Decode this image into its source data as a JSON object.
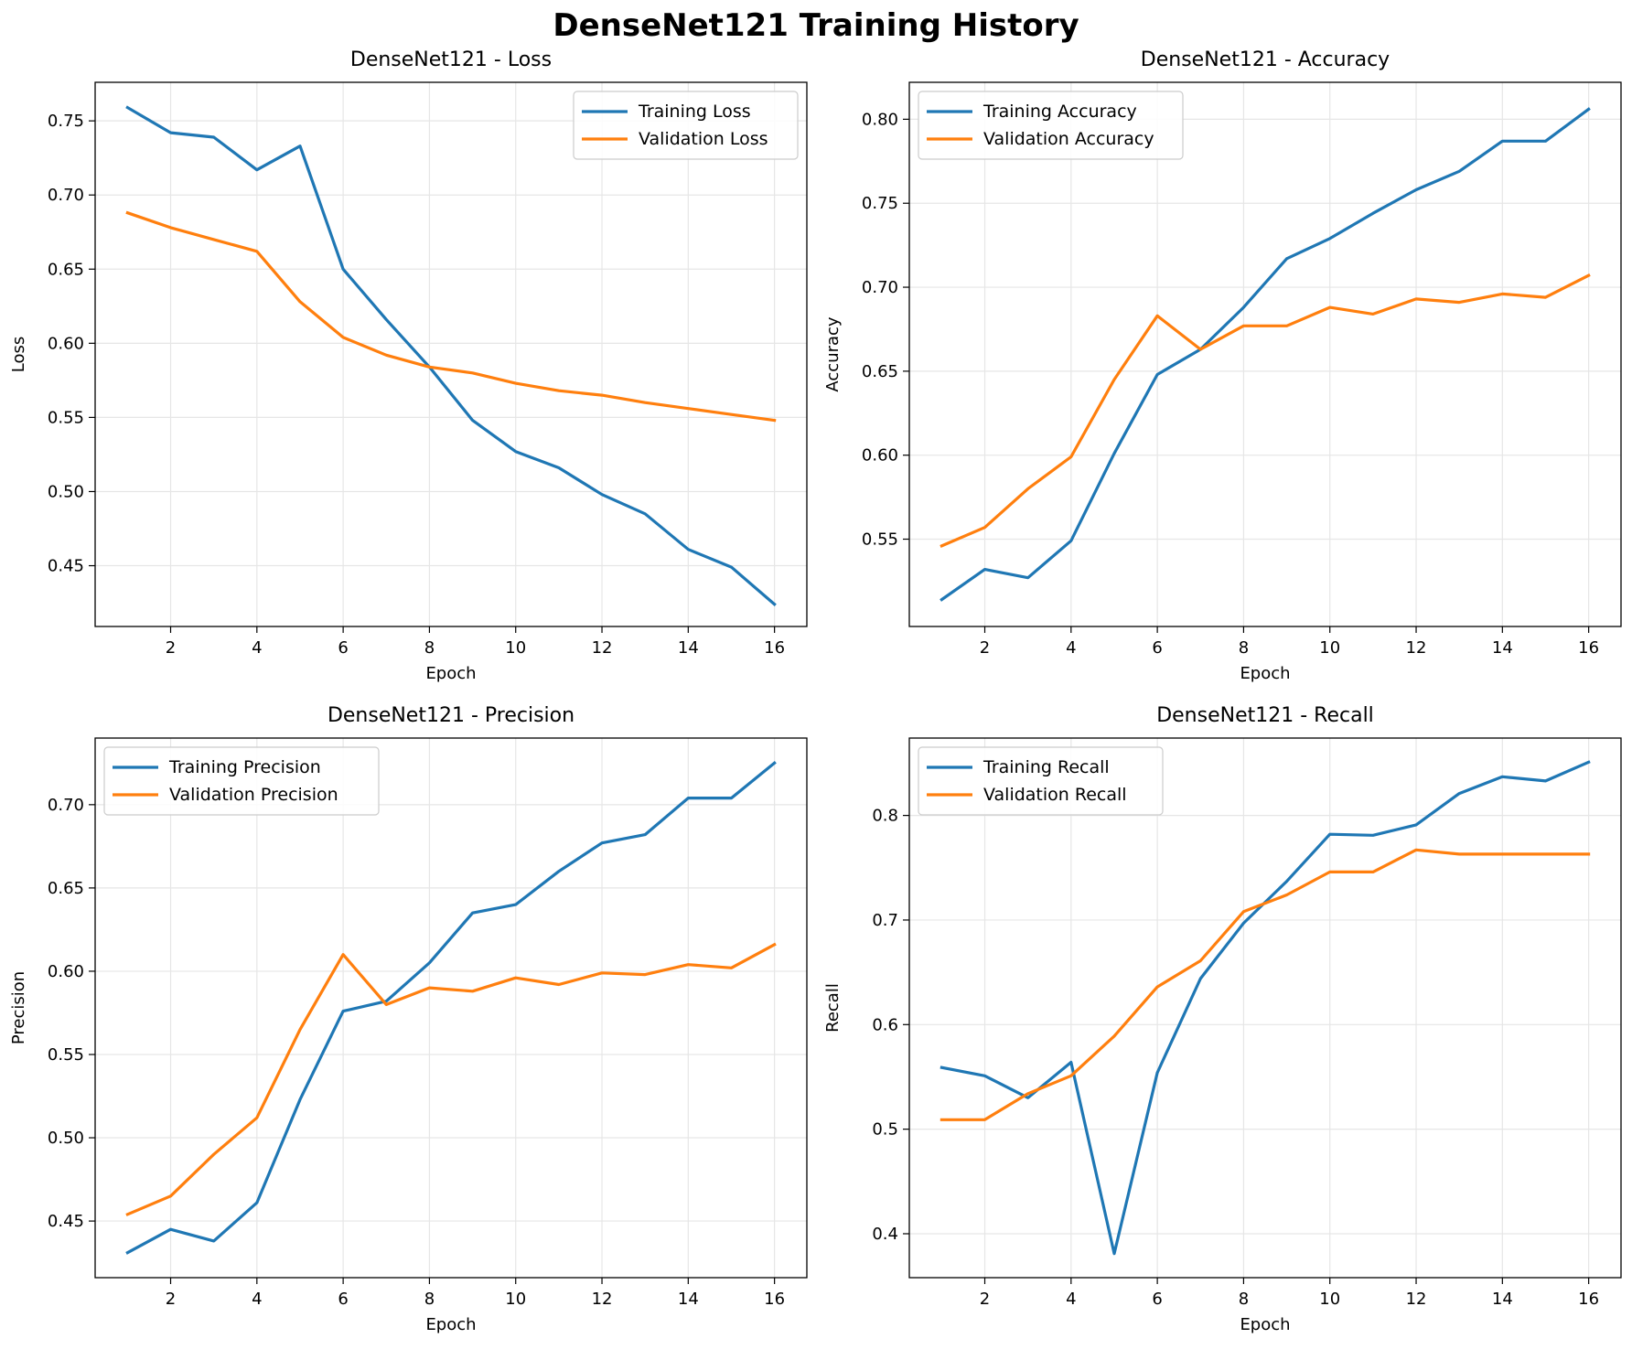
{
  "suptitle": "DenseNet121 Training History",
  "colors": {
    "training": "#1f77b4",
    "validation": "#ff7f0e",
    "grid": "#e6e6e6"
  },
  "chart_data": [
    {
      "type": "line",
      "title": "DenseNet121 - Loss",
      "xlabel": "Epoch",
      "ylabel": "Loss",
      "x": [
        1,
        2,
        3,
        4,
        5,
        6,
        7,
        8,
        9,
        10,
        11,
        12,
        13,
        14,
        15,
        16
      ],
      "xticks": [
        2,
        4,
        6,
        8,
        10,
        12,
        14,
        16
      ],
      "yticks": [
        0.45,
        0.5,
        0.55,
        0.6,
        0.65,
        0.7,
        0.75
      ],
      "ytick_labels": [
        "0.45",
        "0.50",
        "0.55",
        "0.60",
        "0.65",
        "0.70",
        "0.75"
      ],
      "xlim": [
        0.25,
        16.75
      ],
      "ylim": [
        0.409,
        0.776
      ],
      "grid": true,
      "legend": "upper right",
      "series": [
        {
          "name": "Training Loss",
          "values": [
            0.759,
            0.742,
            0.739,
            0.717,
            0.733,
            0.65,
            0.616,
            0.584,
            0.548,
            0.527,
            0.516,
            0.498,
            0.485,
            0.461,
            0.449,
            0.424
          ]
        },
        {
          "name": "Validation Loss",
          "values": [
            0.688,
            0.678,
            0.67,
            0.662,
            0.628,
            0.604,
            0.592,
            0.584,
            0.58,
            0.573,
            0.568,
            0.565,
            0.56,
            0.556,
            0.552,
            0.548
          ]
        }
      ]
    },
    {
      "type": "line",
      "title": "DenseNet121 - Accuracy",
      "xlabel": "Epoch",
      "ylabel": "Accuracy",
      "x": [
        1,
        2,
        3,
        4,
        5,
        6,
        7,
        8,
        9,
        10,
        11,
        12,
        13,
        14,
        15,
        16
      ],
      "xticks": [
        2,
        4,
        6,
        8,
        10,
        12,
        14,
        16
      ],
      "yticks": [
        0.55,
        0.6,
        0.65,
        0.7,
        0.75,
        0.8
      ],
      "ytick_labels": [
        "0.55",
        "0.60",
        "0.65",
        "0.70",
        "0.75",
        "0.80"
      ],
      "xlim": [
        0.25,
        16.75
      ],
      "ylim": [
        0.498,
        0.822
      ],
      "grid": true,
      "legend": "upper left",
      "series": [
        {
          "name": "Training Accuracy",
          "values": [
            0.514,
            0.532,
            0.527,
            0.549,
            0.601,
            0.648,
            0.663,
            0.688,
            0.717,
            0.729,
            0.744,
            0.758,
            0.769,
            0.787,
            0.787,
            0.806
          ]
        },
        {
          "name": "Validation Accuracy",
          "values": [
            0.546,
            0.557,
            0.58,
            0.599,
            0.645,
            0.683,
            0.663,
            0.677,
            0.677,
            0.688,
            0.684,
            0.693,
            0.691,
            0.696,
            0.694,
            0.707
          ]
        }
      ]
    },
    {
      "type": "line",
      "title": "DenseNet121 - Precision",
      "xlabel": "Epoch",
      "ylabel": "Precision",
      "x": [
        1,
        2,
        3,
        4,
        5,
        6,
        7,
        8,
        9,
        10,
        11,
        12,
        13,
        14,
        15,
        16
      ],
      "xticks": [
        2,
        4,
        6,
        8,
        10,
        12,
        14,
        16
      ],
      "yticks": [
        0.45,
        0.5,
        0.55,
        0.6,
        0.65,
        0.7
      ],
      "ytick_labels": [
        "0.45",
        "0.50",
        "0.55",
        "0.60",
        "0.65",
        "0.70"
      ],
      "xlim": [
        0.25,
        16.75
      ],
      "ylim": [
        0.416,
        0.74
      ],
      "grid": true,
      "legend": "upper left",
      "series": [
        {
          "name": "Training Precision",
          "values": [
            0.431,
            0.445,
            0.438,
            0.461,
            0.523,
            0.576,
            0.582,
            0.605,
            0.635,
            0.64,
            0.66,
            0.677,
            0.682,
            0.704,
            0.704,
            0.725
          ]
        },
        {
          "name": "Validation Precision",
          "values": [
            0.454,
            0.465,
            0.49,
            0.512,
            0.565,
            0.61,
            0.58,
            0.59,
            0.588,
            0.596,
            0.592,
            0.599,
            0.598,
            0.604,
            0.602,
            0.616
          ]
        }
      ]
    },
    {
      "type": "line",
      "title": "DenseNet121 - Recall",
      "xlabel": "Epoch",
      "ylabel": "Recall",
      "x": [
        1,
        2,
        3,
        4,
        5,
        6,
        7,
        8,
        9,
        10,
        11,
        12,
        13,
        14,
        15,
        16
      ],
      "xticks": [
        2,
        4,
        6,
        8,
        10,
        12,
        14,
        16
      ],
      "yticks": [
        0.4,
        0.5,
        0.6,
        0.7,
        0.8
      ],
      "ytick_labels": [
        "0.4",
        "0.5",
        "0.6",
        "0.7",
        "0.8"
      ],
      "xlim": [
        0.25,
        16.75
      ],
      "ylim": [
        0.358,
        0.874
      ],
      "grid": true,
      "legend": "upper left",
      "series": [
        {
          "name": "Training Recall",
          "values": [
            0.559,
            0.551,
            0.53,
            0.564,
            0.381,
            0.554,
            0.644,
            0.697,
            0.737,
            0.782,
            0.781,
            0.791,
            0.821,
            0.837,
            0.833,
            0.851
          ]
        },
        {
          "name": "Validation Recall",
          "values": [
            0.509,
            0.509,
            0.534,
            0.551,
            0.589,
            0.636,
            0.661,
            0.708,
            0.724,
            0.746,
            0.746,
            0.767,
            0.763,
            0.763,
            0.763,
            0.763
          ]
        }
      ]
    }
  ]
}
